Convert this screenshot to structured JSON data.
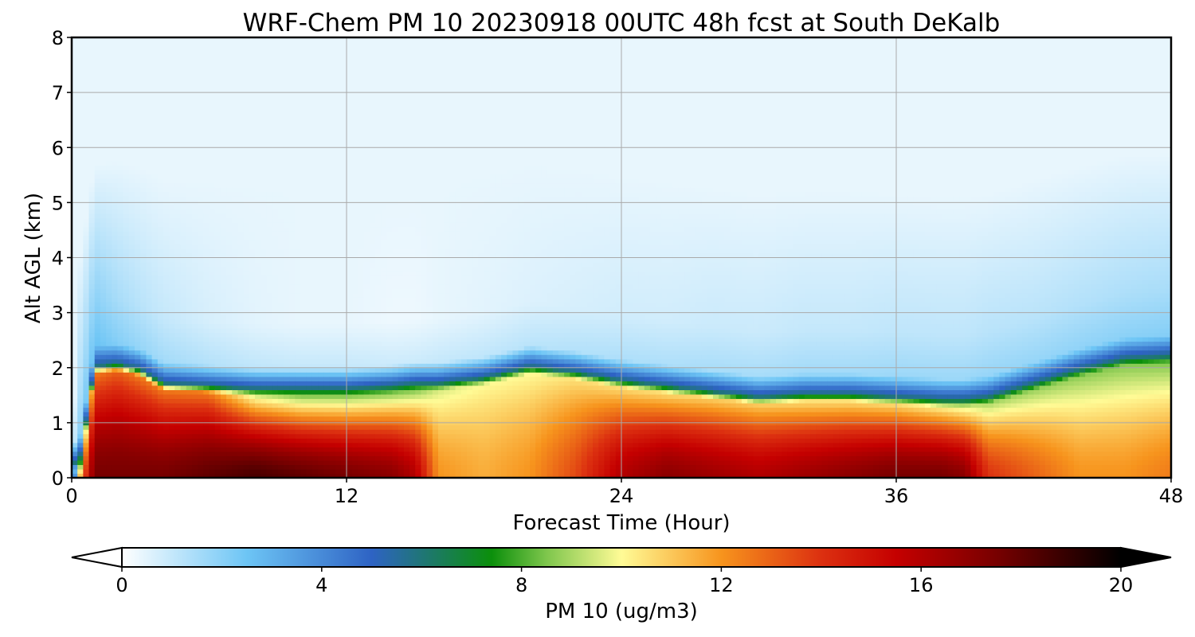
{
  "chart_data": {
    "type": "heatmap",
    "title": "WRF-Chem PM 10  20230918 00UTC 48h fcst at South DeKalb",
    "xlabel": "Forecast Time (Hour)",
    "ylabel": "Alt AGL (km)",
    "xlim": [
      0,
      48
    ],
    "ylim": [
      0,
      8
    ],
    "xticks": [
      0,
      12,
      24,
      36,
      48
    ],
    "yticks": [
      0,
      1,
      2,
      3,
      4,
      5,
      6,
      7,
      8
    ],
    "grid": true,
    "colorbar": {
      "label": "PM 10  (ug/m3)",
      "range": [
        0,
        20
      ],
      "ticks": [
        0,
        4,
        8,
        12,
        16,
        20
      ],
      "extend": "both",
      "colormap_stops": [
        {
          "value": 0,
          "color": "#ffffff"
        },
        {
          "value": 2.5,
          "color": "#6dc5f5"
        },
        {
          "value": 5,
          "color": "#2e63c4"
        },
        {
          "value": 7.4,
          "color": "#0b8f0b"
        },
        {
          "value": 8.5,
          "color": "#7ec64c"
        },
        {
          "value": 10,
          "color": "#fffb96"
        },
        {
          "value": 12,
          "color": "#f7941d"
        },
        {
          "value": 14,
          "color": "#dc3010"
        },
        {
          "value": 15.5,
          "color": "#c50000"
        },
        {
          "value": 17.5,
          "color": "#780000"
        },
        {
          "value": 20,
          "color": "#000000"
        }
      ]
    },
    "hours": [
      0,
      0.4,
      1,
      2,
      3,
      4,
      6,
      8,
      10,
      12,
      14,
      15,
      16,
      18,
      20,
      22,
      24,
      26,
      28,
      30,
      32,
      34,
      36,
      38,
      39,
      40,
      42,
      44,
      46,
      48
    ],
    "mixing_layer_top_km": [
      0.1,
      0.3,
      1.9,
      1.95,
      1.85,
      1.6,
      1.55,
      1.5,
      1.5,
      1.5,
      1.55,
      1.6,
      1.6,
      1.7,
      1.9,
      1.8,
      1.65,
      1.55,
      1.45,
      1.35,
      1.4,
      1.4,
      1.35,
      1.3,
      1.3,
      1.35,
      1.6,
      1.85,
      2.05,
      2.1
    ],
    "surface_pm10": [
      0,
      12,
      17.5,
      17.5,
      17.5,
      17.5,
      18,
      18.5,
      18,
      17.5,
      17,
      16,
      12,
      11.5,
      12,
      13.5,
      16,
      17,
      16.5,
      16,
      16.5,
      17,
      17.5,
      17.5,
      17,
      14,
      13,
      12,
      12,
      12.5
    ],
    "top_layer_pm10": [
      0,
      8,
      12.5,
      13,
      12.5,
      12.5,
      12.5,
      9.5,
      8.5,
      8.5,
      8.5,
      8.5,
      9.5,
      10,
      10,
      10.5,
      10.5,
      10.5,
      10.8,
      10.8,
      10.5,
      10.5,
      10.5,
      10,
      9.5,
      9,
      8.8,
      8.7,
      8.6,
      8.5
    ],
    "free_troposphere_pm10": [
      0,
      1.5,
      2,
      1.5,
      1.2,
      1,
      0.7,
      0.5,
      0.4,
      0.4,
      0.3,
      0.3,
      0.4,
      0.5,
      0.6,
      0.7,
      0.8,
      0.8,
      0.9,
      0.9,
      1,
      1,
      1.1,
      1.1,
      1.1,
      1.2,
      1.2,
      1.3,
      1.4,
      1.5
    ],
    "upper_air_pm10": 0.4
  }
}
